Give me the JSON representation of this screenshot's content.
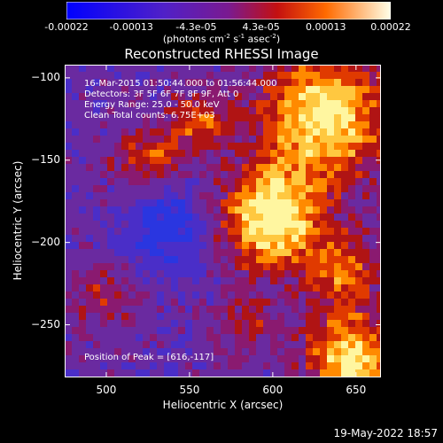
{
  "colorbar": {
    "tick_labels": [
      "-0.00022",
      "-0.00013",
      "-4.3e-05",
      "4.3e-05",
      "0.00013",
      "0.00022"
    ],
    "unit_prefix": "(photons cm",
    "unit_sup1": "-2",
    "unit_mid1": " s",
    "unit_sup2": "-1",
    "unit_mid2": " asec",
    "unit_sup3": "-2",
    "unit_suffix": ")"
  },
  "title": "Reconstructed RHESSI Image",
  "overlay": {
    "time_range": "16-Mar-2015 01:50:44.000 to 01:56:44.000",
    "detectors": "Detectors: 3F 5F 6F 7F 8F 9F, Att 0",
    "energy": "Energy Range: 25.0 - 50.0 keV",
    "method": "Clean    Total counts: 6.75E+03",
    "peak": "Position of Peak = [616,-117]"
  },
  "axes": {
    "xlabel": "Heliocentric X (arcsec)",
    "ylabel": "Heliocentric Y (arcsec)",
    "xlim": [
      475,
      665
    ],
    "ylim": [
      -282,
      -92
    ],
    "xticks": [
      500,
      550,
      600,
      650
    ],
    "yticks": [
      -100,
      -150,
      -200,
      -250
    ],
    "xtick_labels": [
      "500",
      "550",
      "600",
      "650"
    ],
    "ytick_labels": [
      "−100",
      "−150",
      "−200",
      "−250"
    ]
  },
  "footer": {
    "date": "19-May-2022 18:57"
  }
}
